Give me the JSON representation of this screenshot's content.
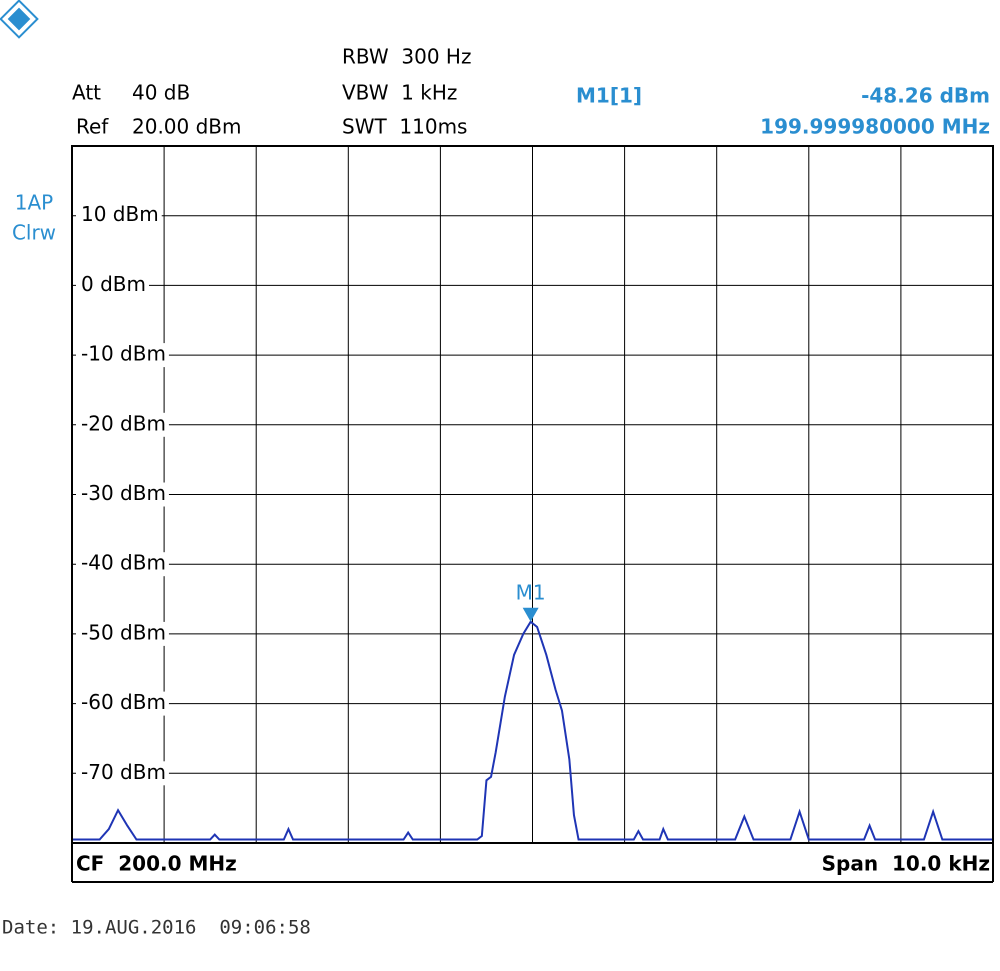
{
  "chart_data": {
    "type": "line",
    "header": {
      "att_label": "Att",
      "att_value": "40 dB",
      "ref_label": "Ref",
      "ref_value": "20.00 dBm",
      "rbw": "RBW  300 Hz",
      "vbw": "VBW  1 kHz",
      "swt": "SWT  110ms",
      "marker_name": "M1[1]",
      "marker_level": "-48.26 dBm",
      "marker_freq": "199.999980000 MHz"
    },
    "trace_labels": [
      "1AP",
      "Clrw"
    ],
    "center": "CF  200.0 MHz",
    "span": "Span  10.0 kHz",
    "date": "Date: 19.AUG.2016  09:06:58",
    "xlim": [
      199.995,
      200.005
    ],
    "ylim": [
      -80,
      20
    ],
    "yticks": [
      {
        "value": 10,
        "label": "10 dBm"
      },
      {
        "value": 0,
        "label": "0 dBm"
      },
      {
        "value": -10,
        "label": "-10 dBm"
      },
      {
        "value": -20,
        "label": "-20 dBm"
      },
      {
        "value": -30,
        "label": "-30 dBm"
      },
      {
        "value": -40,
        "label": "-40 dBm"
      },
      {
        "value": -50,
        "label": "-50 dBm"
      },
      {
        "value": -60,
        "label": "-60 dBm"
      },
      {
        "value": -70,
        "label": "-70 dBm"
      }
    ],
    "grid": true,
    "color": "#1f35b5",
    "x": [
      199.995,
      199.9953,
      199.9954,
      199.9955,
      199.9956,
      199.9957,
      199.9965,
      199.99655,
      199.9966,
      199.9973,
      199.99735,
      199.9974,
      199.9986,
      199.99865,
      199.9987,
      199.9994,
      199.99945,
      199.9995,
      199.99955,
      199.9996,
      199.9997,
      199.9998,
      199.9999,
      199.99998,
      200.00005,
      200.00015,
      200.00025,
      200.00032,
      200.0004,
      200.00045,
      200.0005,
      200.0011,
      200.00115,
      200.0012,
      200.00138,
      200.00142,
      200.00147,
      200.0022,
      200.0023,
      200.0024,
      200.0028,
      200.0029,
      200.003,
      200.0036,
      200.00366,
      200.00372,
      200.00425,
      200.00435,
      200.00445,
      200.005
    ],
    "values": [
      -79.5,
      -79.5,
      -78,
      -75.3,
      -77.5,
      -79.5,
      -79.5,
      -78.8,
      -79.5,
      -79.5,
      -78,
      -79.5,
      -79.5,
      -78.5,
      -79.5,
      -79.5,
      -79,
      -71,
      -70.5,
      -67,
      -59,
      -53,
      -50,
      -48.26,
      -49,
      -53,
      -58,
      -61,
      -68,
      -76,
      -79.5,
      -79.5,
      -78.3,
      -79.5,
      -79.5,
      -78,
      -79.5,
      -79.5,
      -76.2,
      -79.5,
      -79.5,
      -75.5,
      -79.5,
      -79.5,
      -77.5,
      -79.5,
      -79.5,
      -75.5,
      -79.5,
      -79.5
    ],
    "marker": {
      "label": "M1",
      "x": 199.99998,
      "y": -48.26,
      "color": "#2a8ed0"
    }
  }
}
